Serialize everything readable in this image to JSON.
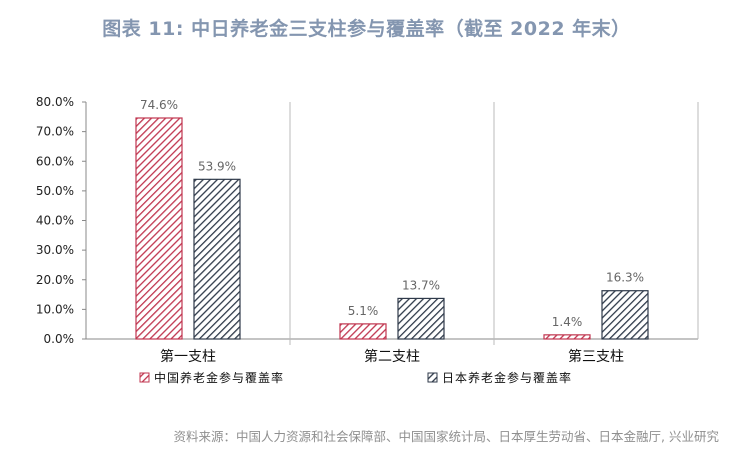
{
  "title": "图表 11: 中日养老金三支柱参与覆盖率（截至 2022 年末）",
  "source": "资料来源：中国人力资源和社会保障部、中国国家统计局、日本厚生劳动省、日本金融厅, 兴业研究",
  "colors": {
    "china": "#c0354f",
    "japan": "#2f3a4a",
    "title": "#8496b0"
  },
  "chart_data": {
    "type": "bar",
    "categories": [
      "第一支柱",
      "第二支柱",
      "第三支柱"
    ],
    "series": [
      {
        "name": "中国养老金参与覆盖率",
        "values": [
          74.6,
          5.1,
          1.4
        ],
        "labels": [
          "74.6%",
          "5.1%",
          "1.4%"
        ]
      },
      {
        "name": "日本养老金参与覆盖率",
        "values": [
          53.9,
          13.7,
          16.3
        ],
        "labels": [
          "53.9%",
          "13.7%",
          "16.3%"
        ]
      }
    ],
    "ylim": [
      0,
      80
    ],
    "yticks": [
      "0.0%",
      "10.0%",
      "20.0%",
      "30.0%",
      "40.0%",
      "50.0%",
      "60.0%",
      "70.0%",
      "80.0%"
    ],
    "grid": false,
    "legend_position": "bottom"
  }
}
